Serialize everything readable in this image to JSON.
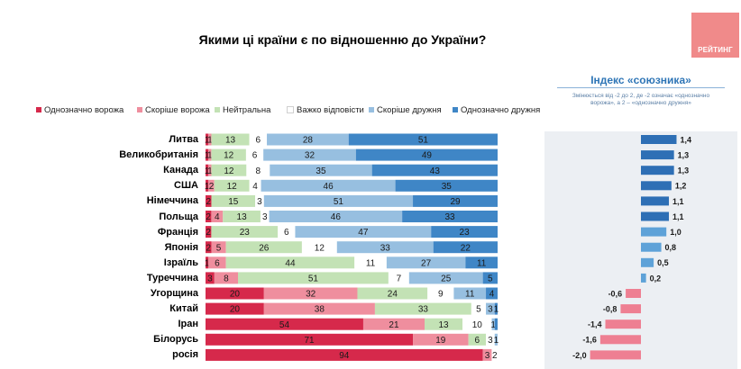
{
  "header": {
    "title": "Якими ці країни є по відношенню до України?",
    "logo_text": "РЕЙТИНГ"
  },
  "index_panel": {
    "title": "Індекс «союзника»",
    "subtitle_line1": "Змінюється від -2 до 2, де -2 означає «однозначно",
    "subtitle_line2": "ворожа», а 2 – «однозначно дружня»"
  },
  "colors": {
    "definitely_hostile": "#d6294b",
    "rather_hostile": "#ef8e9e",
    "neutral": "#c3e2b5",
    "hard_to_say": "#ffffff",
    "rather_friendly": "#97bfe0",
    "definitely_friendly": "#3f86c6",
    "index_positive_strong": "#2e6fb5",
    "index_positive_light": "#5ea2d8",
    "index_negative": "#ee7f92"
  },
  "chart_data": {
    "type": "bar",
    "orientation": "horizontal",
    "stacked": true,
    "title": "Якими ці країни є по відношенню до України?",
    "categories": [
      "Литва",
      "Великобританія",
      "Канада",
      "США",
      "Німеччина",
      "Польща",
      "Франція",
      "Японія",
      "Ізраїль",
      "Туреччина",
      "Угорщина",
      "Китай",
      "Іран",
      "Білорусь",
      "росія"
    ],
    "series": [
      {
        "name": "Однозначно ворожа",
        "values": [
          1,
          1,
          1,
          1,
          2,
          2,
          2,
          2,
          1,
          3,
          20,
          20,
          54,
          71,
          94
        ],
        "labels": [
          "1",
          "1",
          "1",
          "1",
          "2",
          "2",
          "2",
          "2",
          "1",
          "3",
          "20",
          "20",
          "54",
          "71",
          "94"
        ]
      },
      {
        "name": "Скоріше ворожа",
        "values": [
          1,
          1,
          1,
          2,
          0,
          4,
          0,
          5,
          6,
          8,
          32,
          38,
          21,
          19,
          3
        ],
        "labels": [
          "1",
          "1",
          "1",
          "2",
          "",
          "4",
          "",
          "5",
          "6",
          "8",
          "32",
          "38",
          "21",
          "19",
          "3"
        ]
      },
      {
        "name": "Нейтральна",
        "values": [
          13,
          12,
          12,
          12,
          15,
          13,
          23,
          26,
          44,
          51,
          24,
          33,
          13,
          6,
          0
        ],
        "labels": [
          "13",
          "12",
          "12",
          "12",
          "15",
          "13",
          "23",
          "26",
          "44",
          "51",
          "24",
          "33",
          "13",
          "6",
          ""
        ]
      },
      {
        "name": "Важко відповісти",
        "values": [
          6,
          6,
          8,
          4,
          3,
          3,
          6,
          12,
          11,
          7,
          9,
          5,
          10,
          3,
          2
        ],
        "labels": [
          "6",
          "6",
          "8",
          "4",
          "3",
          "3",
          "6",
          "12",
          "11",
          "7",
          "9",
          "5",
          "10",
          "3",
          "2"
        ]
      },
      {
        "name": "Скоріше дружня",
        "values": [
          28,
          32,
          35,
          46,
          51,
          46,
          47,
          33,
          27,
          25,
          11,
          3,
          1,
          1,
          0
        ],
        "labels": [
          "28",
          "32",
          "35",
          "46",
          "51",
          "46",
          "47",
          "33",
          "27",
          "25",
          "11",
          "3",
          "1",
          "1",
          ""
        ]
      },
      {
        "name": "Однозначно дружня",
        "values": [
          51,
          49,
          43,
          35,
          29,
          33,
          23,
          22,
          11,
          5,
          4,
          1,
          1,
          0,
          0
        ],
        "labels": [
          "51",
          "49",
          "43",
          "35",
          "29",
          "33",
          "23",
          "22",
          "11",
          "5",
          "4",
          "1",
          "",
          "",
          ""
        ]
      }
    ],
    "xlim": [
      0,
      100
    ],
    "legend_position": "top",
    "index": {
      "title": "Індекс «союзника»",
      "range": [
        -2,
        2
      ],
      "values": [
        1.4,
        1.3,
        1.3,
        1.2,
        1.1,
        1.1,
        1.0,
        0.8,
        0.5,
        0.2,
        -0.6,
        -0.8,
        -1.4,
        -1.6,
        -2.0
      ],
      "labels": [
        "1,4",
        "1,3",
        "1,3",
        "1,2",
        "1,1",
        "1,1",
        "1,0",
        "0,8",
        "0,5",
        "0,2",
        "-0,6",
        "-0,8",
        "-1,4",
        "-1,6",
        "-2,0"
      ]
    }
  }
}
